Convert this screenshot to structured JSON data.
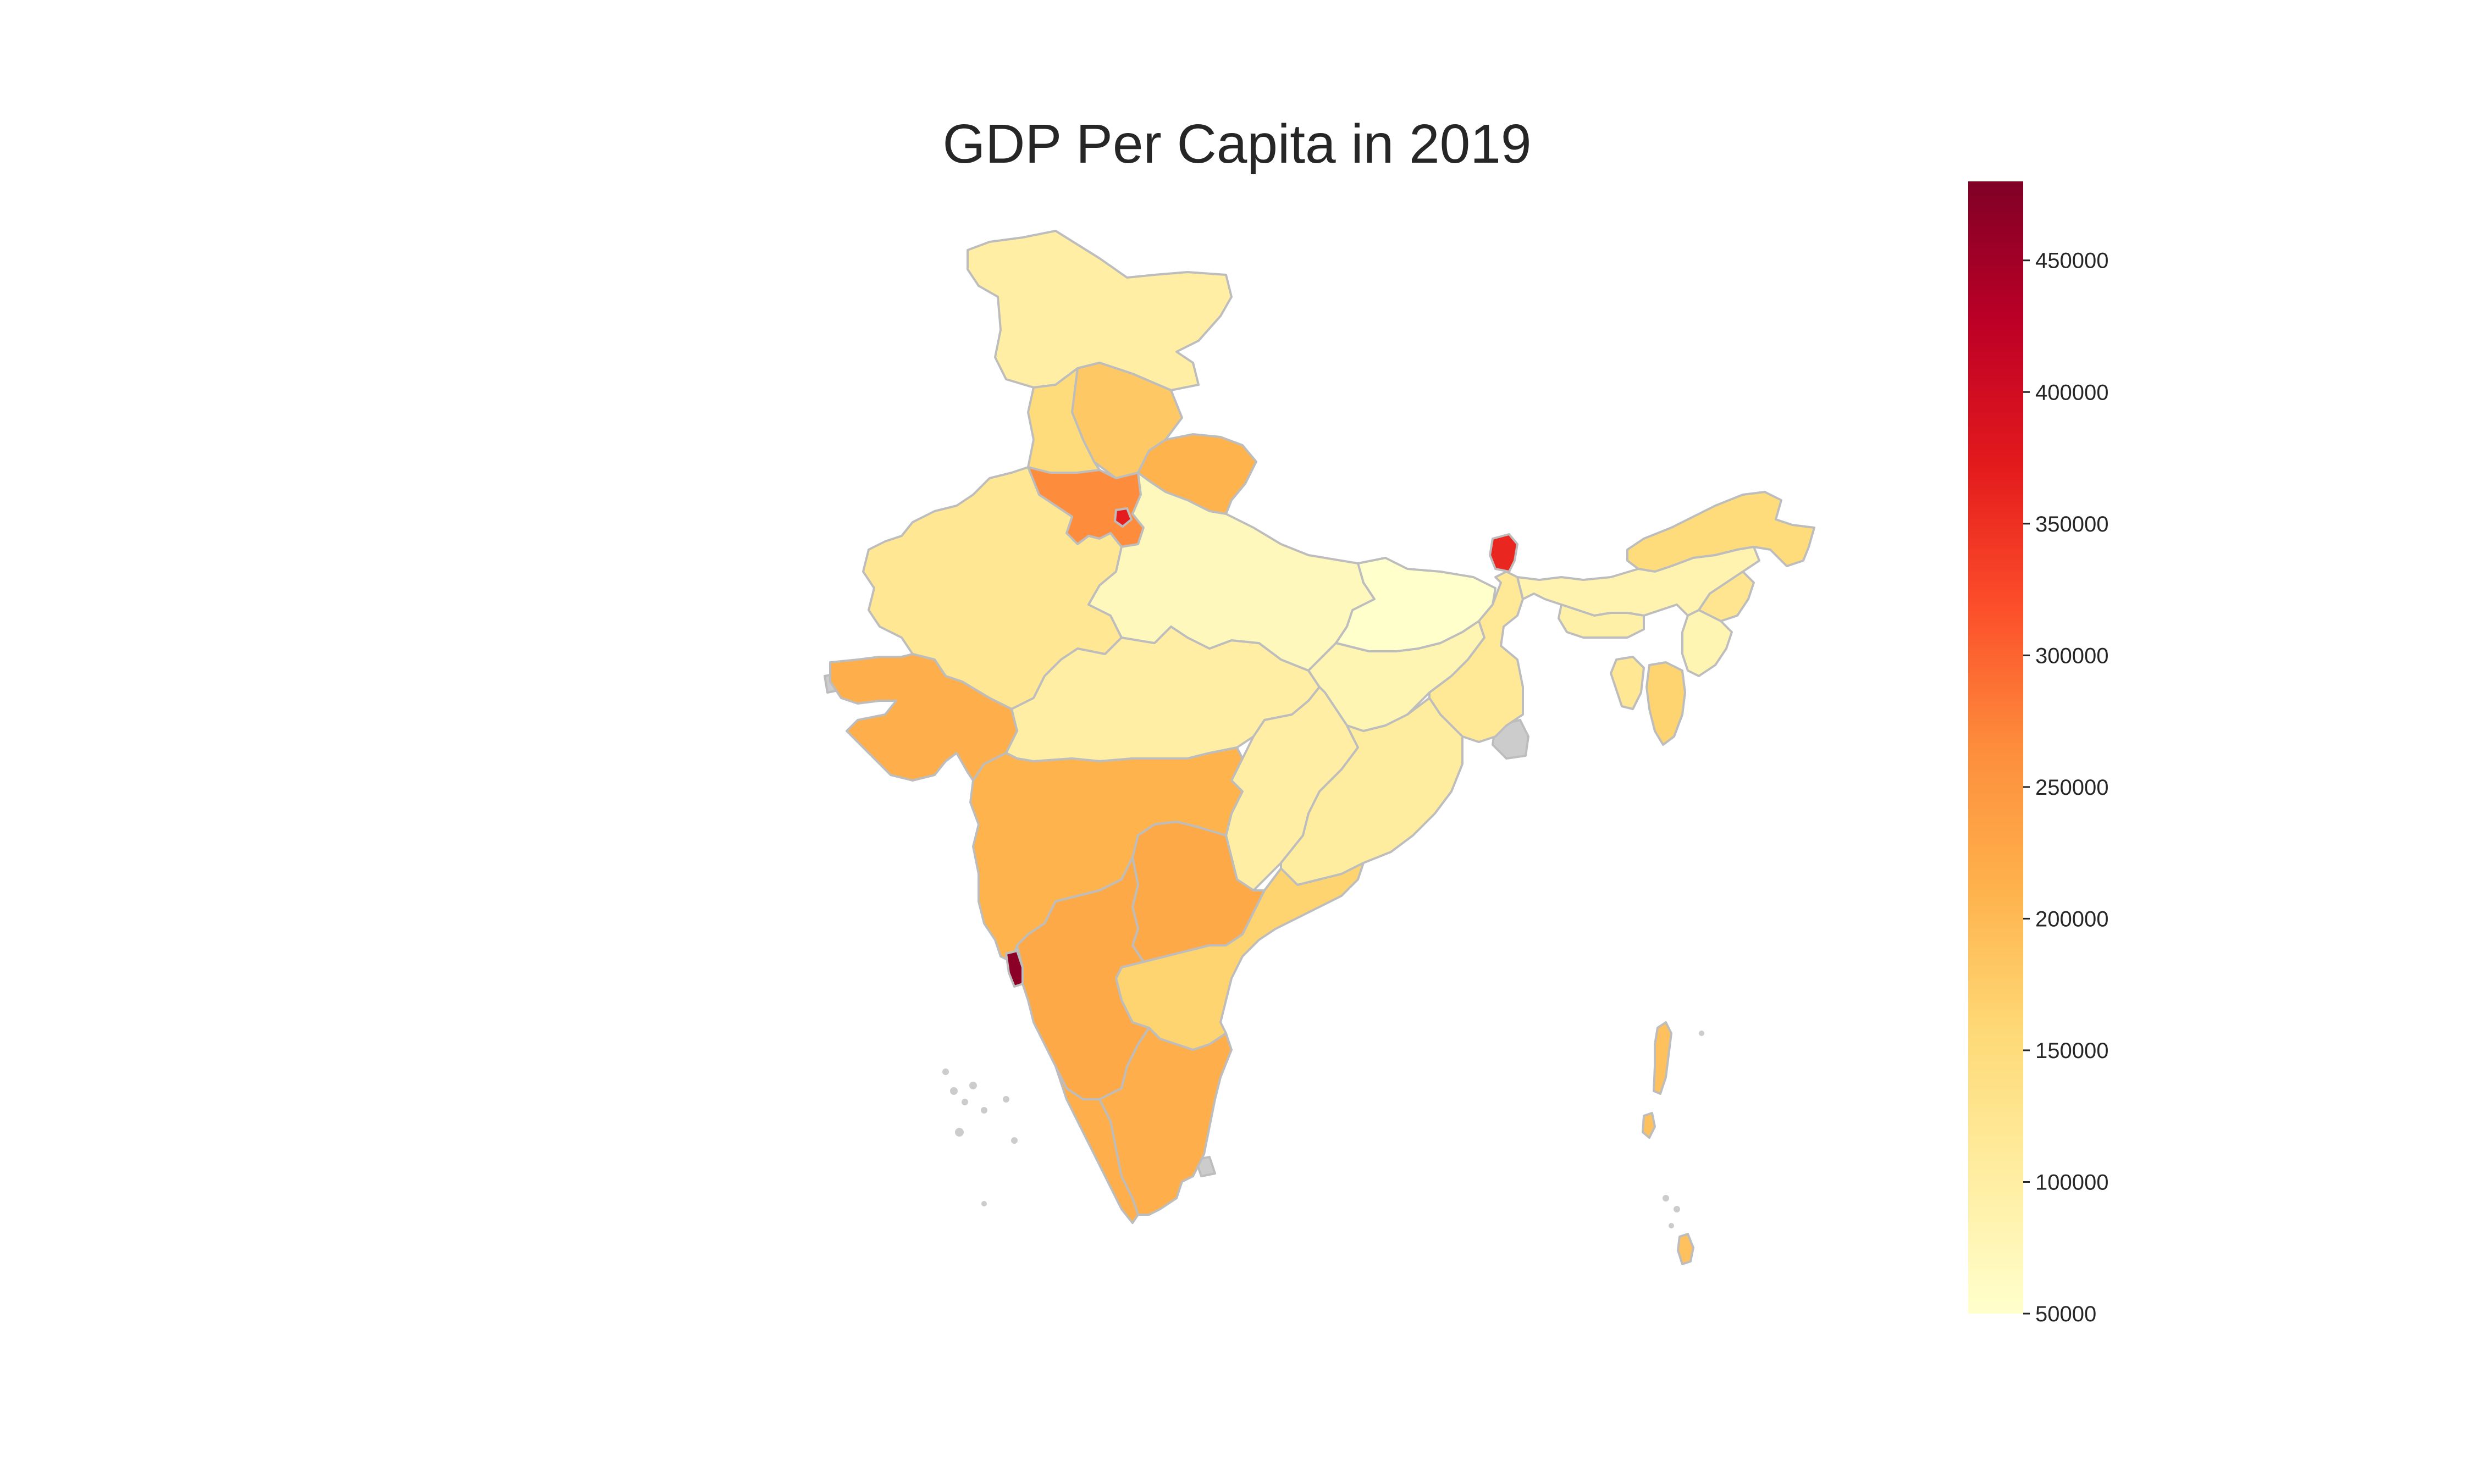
{
  "title": "GDP Per Capita in 2019",
  "colorbar": {
    "min": 50000,
    "max": 480000,
    "ticks": [
      {
        "value": 50000,
        "label": "50000"
      },
      {
        "value": 100000,
        "label": "100000"
      },
      {
        "value": 150000,
        "label": "150000"
      },
      {
        "value": 200000,
        "label": "200000"
      },
      {
        "value": 250000,
        "label": "250000"
      },
      {
        "value": 300000,
        "label": "300000"
      },
      {
        "value": 350000,
        "label": "350000"
      },
      {
        "value": 400000,
        "label": "400000"
      },
      {
        "value": 450000,
        "label": "450000"
      }
    ],
    "colormap": [
      "#ffffcc",
      "#ffeda0",
      "#fed976",
      "#feb24c",
      "#fd8d3c",
      "#fc4e2a",
      "#e31a1c",
      "#bd0026",
      "#800026"
    ]
  },
  "no_data_color": "#cccccc",
  "border_color": "#bdbdbd",
  "regions": [
    {
      "name": "jammu-kashmir",
      "value": 100000
    },
    {
      "name": "himachal-pradesh",
      "value": 180000
    },
    {
      "name": "punjab",
      "value": 150000
    },
    {
      "name": "uttarakhand",
      "value": 210000
    },
    {
      "name": "haryana",
      "value": 265000
    },
    {
      "name": "delhi",
      "value": 370000
    },
    {
      "name": "rajasthan",
      "value": 120000
    },
    {
      "name": "uttar-pradesh",
      "value": 70000
    },
    {
      "name": "bihar",
      "value": 50000
    },
    {
      "name": "sikkim",
      "value": 360000
    },
    {
      "name": "gujarat",
      "value": 215000
    },
    {
      "name": "madhya-pradesh",
      "value": 100000
    },
    {
      "name": "jharkhand",
      "value": 80000
    },
    {
      "name": "west-bengal",
      "value": 115000
    },
    {
      "name": "chhattisgarh",
      "value": 100000
    },
    {
      "name": "odisha",
      "value": 105000
    },
    {
      "name": "maharashtra",
      "value": 210000
    },
    {
      "name": "telangana",
      "value": 225000
    },
    {
      "name": "andhra-pradesh",
      "value": 165000
    },
    {
      "name": "goa",
      "value": 470000
    },
    {
      "name": "karnataka",
      "value": 225000
    },
    {
      "name": "kerala",
      "value": 215000
    },
    {
      "name": "tamil-nadu",
      "value": 215000
    },
    {
      "name": "arunachal-pradesh",
      "value": 150000
    },
    {
      "name": "assam",
      "value": 85000
    },
    {
      "name": "meghalaya",
      "value": 95000
    },
    {
      "name": "nagaland",
      "value": 125000
    },
    {
      "name": "manipur",
      "value": 80000
    },
    {
      "name": "mizoram",
      "value": 165000
    },
    {
      "name": "tripura",
      "value": 120000
    },
    {
      "name": "andaman-nicobar",
      "value": 190000
    }
  ]
}
